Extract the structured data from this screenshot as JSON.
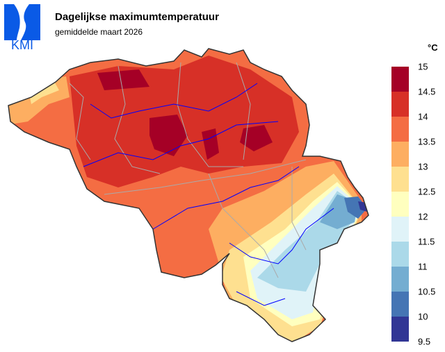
{
  "header": {
    "logo_text": "KMI",
    "title": "Dagelijkse maximumtemperatuur",
    "subtitle": "gemiddelde maart 2026"
  },
  "legend": {
    "unit": "°C",
    "labels": [
      "15",
      "14.5",
      "14",
      "13.5",
      "13",
      "12.5",
      "12",
      "11.5",
      "11",
      "10.5",
      "10",
      "9.5"
    ],
    "colors": [
      "#a50026",
      "#d73027",
      "#f46d43",
      "#fdae61",
      "#fee090",
      "#ffffbf",
      "#e0f3f8",
      "#abd9e9",
      "#74add1",
      "#4575b4",
      "#313695"
    ]
  },
  "map": {
    "region": "Belgium",
    "river_color": "#0000ff",
    "border_color": "#aaaaaa",
    "outline_color": "#333333"
  }
}
